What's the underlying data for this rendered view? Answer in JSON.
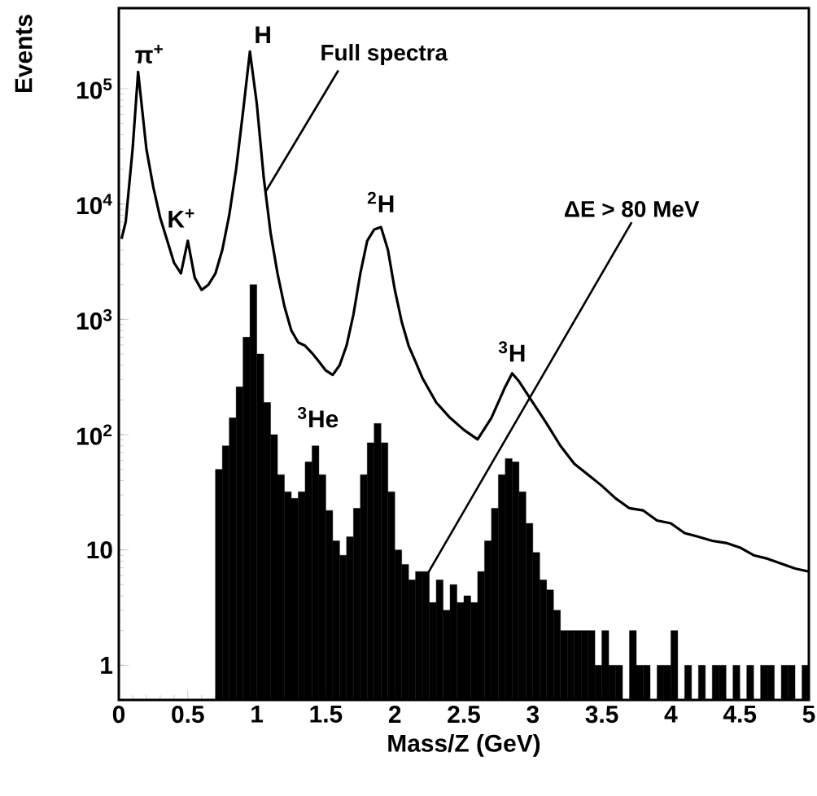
{
  "chart_data": {
    "type": "histogram",
    "xlabel": "Mass/Z (GeV)",
    "ylabel": "Events",
    "log": "y",
    "xlim": [
      0,
      5
    ],
    "ylim": [
      0.5,
      500000
    ],
    "xticks": [
      0,
      0.5,
      1,
      1.5,
      2,
      2.5,
      3,
      3.5,
      4,
      4.5,
      5
    ],
    "yticks": [
      1,
      10,
      {
        "value": 100,
        "label": "10$^{2}$"
      },
      {
        "value": 1000,
        "label": "10$^{3}$"
      },
      {
        "value": 10000,
        "label": "10$^{4}$"
      },
      {
        "value": 100000,
        "label": "10$^{5}$"
      }
    ],
    "bins": [
      0.7,
      0.75,
      0.8,
      0.85,
      0.9,
      0.95,
      1.0,
      1.05,
      1.1,
      1.15,
      1.2,
      1.25,
      1.3,
      1.35,
      1.4,
      1.45,
      1.5,
      1.55,
      1.6,
      1.65,
      1.7,
      1.75,
      1.8,
      1.85,
      1.9,
      1.95,
      2.0,
      2.05,
      2.1,
      2.15,
      2.2,
      2.25,
      2.3,
      2.35,
      2.4,
      2.45,
      2.5,
      2.55,
      2.6,
      2.65,
      2.7,
      2.75,
      2.8,
      2.85,
      2.9,
      2.95,
      3.0,
      3.05,
      3.1,
      3.15,
      3.2,
      3.25,
      3.3,
      3.35,
      3.4,
      3.45,
      3.5,
      3.55,
      3.6,
      3.65,
      3.7,
      3.75,
      3.8,
      3.85,
      3.9,
      3.95,
      4.0,
      4.05,
      4.1,
      4.15,
      4.2,
      4.25,
      4.3,
      4.35,
      4.4,
      4.45,
      4.5,
      4.55,
      4.6,
      4.65,
      4.7,
      4.75,
      4.8,
      4.85,
      4.9,
      4.95,
      5.0
    ],
    "series": [
      {
        "type": "line",
        "color": "#000000",
        "x": [
          0.02,
          0.05,
          0.1,
          0.14,
          0.2,
          0.25,
          0.3,
          0.4,
          0.45,
          0.5,
          0.55,
          0.6,
          0.65,
          0.7,
          0.75,
          0.8,
          0.85,
          0.9,
          0.95,
          1.0,
          1.05,
          1.1,
          1.15,
          1.2,
          1.25,
          1.3,
          1.35,
          1.4,
          1.45,
          1.5,
          1.55,
          1.6,
          1.65,
          1.7,
          1.75,
          1.8,
          1.85,
          1.9,
          1.95,
          2.0,
          2.05,
          2.1,
          2.15,
          2.2,
          2.3,
          2.4,
          2.5,
          2.6,
          2.7,
          2.8,
          2.85,
          2.9,
          3.0,
          3.1,
          3.2,
          3.3,
          3.4,
          3.5,
          3.6,
          3.7,
          3.8,
          3.9,
          4.0,
          4.1,
          4.2,
          4.3,
          4.4,
          4.5,
          4.6,
          4.7,
          4.8,
          4.9,
          5.0
        ],
        "values": [
          5000,
          7000,
          30000,
          140000,
          30000,
          14000,
          7600,
          3100,
          2500,
          4800,
          2300,
          1800,
          2000,
          2500,
          4000,
          8000,
          20000,
          63000,
          210000,
          74000,
          17000,
          5600,
          2500,
          1300,
          800,
          630,
          590,
          510,
          430,
          360,
          330,
          400,
          590,
          1100,
          2500,
          4800,
          6000,
          6300,
          4000,
          1800,
          950,
          590,
          430,
          310,
          190,
          140,
          110,
          91,
          140,
          260,
          340,
          290,
          190,
          125,
          80,
          56,
          45,
          36,
          28,
          23,
          22,
          18,
          17,
          14,
          13,
          12,
          11.5,
          10.5,
          9,
          8.4,
          7.6,
          6.9,
          6.5
        ]
      },
      {
        "color": "#000000",
        "values": [
          50,
          80,
          140,
          260,
          700,
          2000,
          500,
          190,
          100,
          45,
          32,
          28,
          32,
          58,
          80,
          45,
          22,
          12,
          9,
          13,
          23,
          45,
          85,
          125,
          85,
          32,
          10,
          7.5,
          5.5,
          6.5,
          6.5,
          3.5,
          5.5,
          3,
          5,
          3.5,
          4,
          3.5,
          6.5,
          12,
          23,
          45,
          62,
          58,
          32,
          17,
          9.5,
          5.5,
          4.5,
          3,
          2,
          2,
          2,
          2,
          2,
          1,
          2,
          1,
          1,
          null,
          2,
          1,
          1,
          null,
          1,
          1,
          2,
          null,
          1,
          null,
          1,
          null,
          1,
          1,
          null,
          1,
          null,
          1,
          null,
          1,
          1,
          null,
          1,
          1,
          null,
          1
        ]
      }
    ],
    "annotations": [
      {
        "text": "π$^{+}$",
        "x": 0.14,
        "y": 140000
      },
      {
        "text": "K$^{+}$",
        "x": 0.5,
        "y": 4800
      },
      {
        "text": "H",
        "x": 0.95,
        "y": 210000
      },
      {
        "text": "$^{2}$H",
        "x": 1.9,
        "y": 6300
      },
      {
        "text": "$^{3}$He",
        "x": 1.42,
        "y": 80
      },
      {
        "text": "$^{3}$H",
        "x": 2.85,
        "y": 340
      },
      {
        "text": "Full spectra",
        "x": 1.06,
        "y": 12600
      },
      {
        "text": "ΔE > 80 MeV",
        "x": 2.23,
        "y": 6
      }
    ]
  }
}
